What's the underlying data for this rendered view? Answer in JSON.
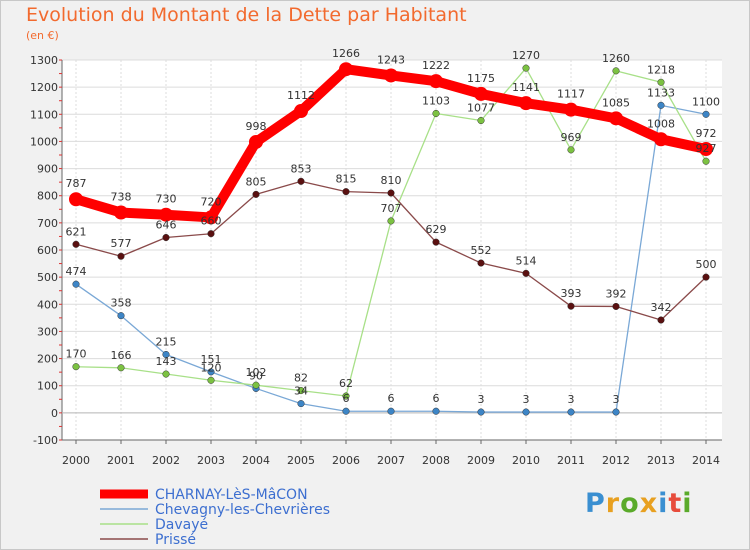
{
  "header": {
    "title": "Evolution du Montant de la Dette par Habitant",
    "unit": "(en €)"
  },
  "logo": {
    "text": "Proxiti",
    "letter_colors": [
      "#3a8fd1",
      "#e8a020",
      "#5aaa2a",
      "#e8a020",
      "#3a8fd1",
      "#e74c3c",
      "#5aaa2a"
    ]
  },
  "chart_data": {
    "type": "line",
    "title": "Evolution du Montant de la Dette par Habitant",
    "ylabel": "(en €)",
    "xlabel": "",
    "ylim": [
      -100,
      1300
    ],
    "y_ticks": [
      -100,
      0,
      100,
      200,
      300,
      400,
      500,
      600,
      700,
      800,
      900,
      1000,
      1100,
      1200,
      1300
    ],
    "x": [
      2000,
      2001,
      2002,
      2003,
      2004,
      2005,
      2006,
      2007,
      2008,
      2009,
      2010,
      2011,
      2012,
      2013,
      2014
    ],
    "grid": true,
    "legend_position": "bottom-left",
    "series": [
      {
        "name": "CHARNAY-LèS-MâCON",
        "color": "#ff0000",
        "point_color": "#ff0000",
        "values": [
          787,
          738,
          730,
          720,
          998,
          1112,
          1266,
          1243,
          1222,
          1175,
          1141,
          1117,
          1085,
          1008,
          972
        ]
      },
      {
        "name": "Chevagny-les-Chevrières",
        "color": "#7aa8d6",
        "point_color": "#3d85c6",
        "values": [
          474,
          358,
          215,
          151,
          90,
          34,
          6,
          6,
          6,
          3,
          3,
          3,
          3,
          1133,
          1100
        ]
      },
      {
        "name": "Davayé",
        "color": "#a8e088",
        "point_color": "#7cc242",
        "values": [
          170,
          166,
          143,
          120,
          102,
          82,
          62,
          707,
          1103,
          1077,
          1270,
          969,
          1260,
          1218,
          927
        ]
      },
      {
        "name": "Prissé",
        "color": "#8a4a4a",
        "point_color": "#5a1010",
        "values": [
          621,
          577,
          646,
          660,
          805,
          853,
          815,
          810,
          629,
          552,
          514,
          393,
          392,
          342,
          500
        ]
      }
    ]
  }
}
